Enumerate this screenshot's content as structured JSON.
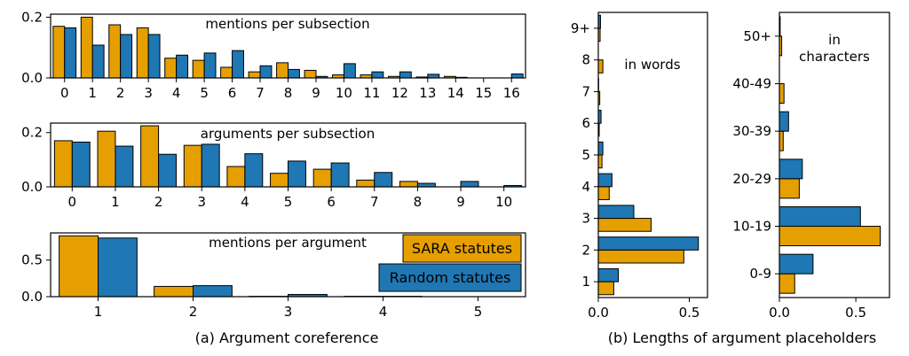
{
  "colors": {
    "sara": "#E69F00",
    "random": "#1F77B4",
    "edge": "#000000"
  },
  "captions": {
    "a": "(a) Argument coreference",
    "b": "(b) Lengths of argument placeholders"
  },
  "chart_data": [
    {
      "type": "bar",
      "title": "mentions per subsection",
      "categories": [
        "0",
        "1",
        "2",
        "3",
        "4",
        "5",
        "6",
        "7",
        "8",
        "9",
        "10",
        "11",
        "12",
        "13",
        "14",
        "15",
        "16"
      ],
      "series": [
        {
          "name": "SARA statutes",
          "values": [
            0.17,
            0.2,
            0.175,
            0.165,
            0.065,
            0.058,
            0.035,
            0.02,
            0.05,
            0.025,
            0.01,
            0.01,
            0.005,
            0.003,
            0.005,
            0.0,
            0.0
          ]
        },
        {
          "name": "Random statutes",
          "values": [
            0.165,
            0.108,
            0.143,
            0.143,
            0.075,
            0.082,
            0.09,
            0.04,
            0.028,
            0.005,
            0.047,
            0.02,
            0.02,
            0.012,
            0.002,
            0.0,
            0.013
          ]
        }
      ],
      "ylim": [
        0,
        0.21
      ],
      "yticks": [
        0.0,
        0.2
      ],
      "ytick_labels": [
        "0.0",
        "0.2"
      ]
    },
    {
      "type": "bar",
      "title": "arguments per subsection",
      "categories": [
        "0",
        "1",
        "2",
        "3",
        "4",
        "5",
        "6",
        "7",
        "8",
        "9",
        "10"
      ],
      "series": [
        {
          "name": "SARA statutes",
          "values": [
            0.17,
            0.205,
            0.225,
            0.153,
            0.075,
            0.05,
            0.065,
            0.025,
            0.02,
            0.0,
            0.0
          ]
        },
        {
          "name": "Random statutes",
          "values": [
            0.165,
            0.15,
            0.12,
            0.157,
            0.122,
            0.095,
            0.088,
            0.053,
            0.013,
            0.02,
            0.005
          ]
        }
      ],
      "ylim": [
        0,
        0.235
      ],
      "yticks": [
        0.0,
        0.2
      ],
      "ytick_labels": [
        "0.0",
        "0.2"
      ]
    },
    {
      "type": "bar",
      "title": "mentions per argument",
      "categories": [
        "1",
        "2",
        "3",
        "4",
        "5"
      ],
      "series": [
        {
          "name": "SARA statutes",
          "values": [
            0.83,
            0.14,
            0.005,
            0.005,
            0.0
          ]
        },
        {
          "name": "Random statutes",
          "values": [
            0.8,
            0.15,
            0.03,
            0.005,
            0.0
          ]
        }
      ],
      "ylim": [
        0,
        0.87
      ],
      "yticks": [
        0.0,
        0.5
      ],
      "ytick_labels": [
        "0.0",
        "0.5"
      ],
      "legend": {
        "placement": "right",
        "entries": [
          "SARA statutes",
          "Random statutes"
        ]
      }
    },
    {
      "type": "barh",
      "title": "in words",
      "categories": [
        "1",
        "2",
        "3",
        "4",
        "5",
        "6",
        "7",
        "8",
        "9+"
      ],
      "series": [
        {
          "name": "SARA statutes",
          "values": [
            0.085,
            0.47,
            0.29,
            0.06,
            0.02,
            0.005,
            0.008,
            0.025,
            0.01
          ]
        },
        {
          "name": "Random statutes",
          "values": [
            0.11,
            0.55,
            0.195,
            0.075,
            0.025,
            0.015,
            0.002,
            0.0,
            0.012
          ]
        }
      ],
      "xlim": [
        0,
        0.6
      ],
      "xticks": [
        0.0,
        0.5
      ],
      "xtick_labels": [
        "0.0",
        "0.5"
      ]
    },
    {
      "type": "barh",
      "title": "in characters",
      "categories": [
        "0-9",
        "10-19",
        "20-29",
        "30-39",
        "40-49",
        "50+"
      ],
      "series": [
        {
          "name": "SARA statutes",
          "values": [
            0.1,
            0.66,
            0.13,
            0.025,
            0.03,
            0.015
          ]
        },
        {
          "name": "Random statutes",
          "values": [
            0.22,
            0.53,
            0.15,
            0.06,
            0.0,
            0.005
          ]
        }
      ],
      "xlim": [
        0,
        0.72
      ],
      "xticks": [
        0.0,
        0.5
      ],
      "xtick_labels": [
        "0.0",
        "0.5"
      ]
    }
  ]
}
